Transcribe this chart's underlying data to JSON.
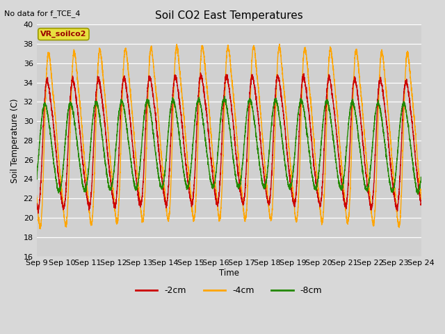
{
  "title": "Soil CO2 East Temperatures",
  "top_left_text": "No data for f_TCE_4",
  "ylabel": "Soil Temperature (C)",
  "xlabel": "Time",
  "ylim": [
    16,
    40
  ],
  "yticks": [
    16,
    18,
    20,
    22,
    24,
    26,
    28,
    30,
    32,
    34,
    36,
    38,
    40
  ],
  "xtick_labels": [
    "Sep 9",
    "Sep 10",
    "Sep 11",
    "Sep 12",
    "Sep 13",
    "Sep 14",
    "Sep 15",
    "Sep 16",
    "Sep 17",
    "Sep 18",
    "Sep 19",
    "Sep 20",
    "Sep 21",
    "Sep 22",
    "Sep 23",
    "Sep 24"
  ],
  "legend_label": "VR_soilco2",
  "line_labels": [
    "-2cm",
    "-4cm",
    "-8cm"
  ],
  "line_colors": [
    "#cc0000",
    "#ffa500",
    "#228800"
  ],
  "background_color": "#d8d8d8",
  "plot_bg_color": "#d0d0d0",
  "n_days": 15,
  "samples_per_day": 288
}
